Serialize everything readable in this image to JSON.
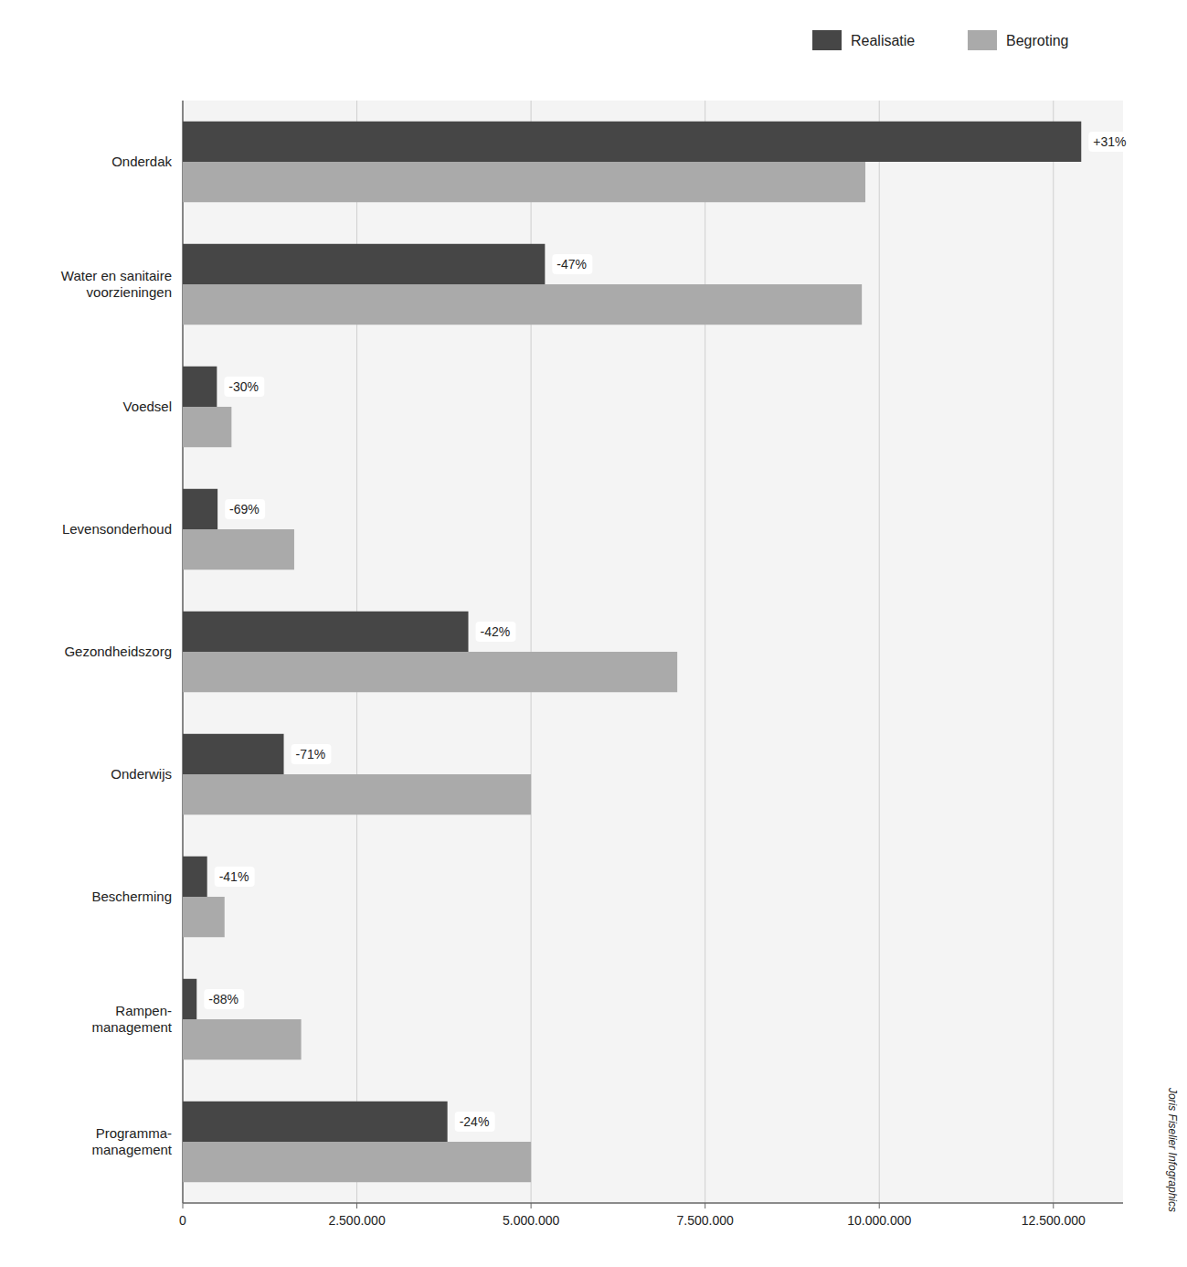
{
  "chart_data": {
    "type": "bar",
    "orientation": "horizontal",
    "categories": [
      "Onderdak",
      "Water en sanitaire\nvoorzieningen",
      "Voedsel",
      "Levensonderhoud",
      "Gezondheidszorg",
      "Onderwijs",
      "Bescherming",
      "Rampen-\nmanagement",
      "Programma-\nmanagement"
    ],
    "series": [
      {
        "name": "Realisatie",
        "color": "#464646",
        "values": [
          12900000,
          5200000,
          490000,
          500000,
          4100000,
          1450000,
          350000,
          200000,
          3800000
        ]
      },
      {
        "name": "Begroting",
        "color": "#AAAAAA",
        "values": [
          9800000,
          9750000,
          700000,
          1600000,
          7100000,
          5000000,
          600000,
          1700000,
          5000000
        ]
      }
    ],
    "annotations": [
      "+31%",
      "-47%",
      "-30%",
      "-69%",
      "-42%",
      "-71%",
      "-41%",
      "-88%",
      "-24%",
      "Joris Fiselier Infographics"
    ],
    "xlim": [
      0,
      13500000
    ],
    "xticks": [
      0,
      {
        "value": 2500000,
        "label": "2.500.000"
      },
      {
        "value": 5000000,
        "label": "5.000.000"
      },
      {
        "value": 7500000,
        "label": "7.500.000"
      },
      {
        "value": 10000000,
        "label": "10.000.000"
      },
      {
        "value": 12500000,
        "label": "12.500.000"
      }
    ],
    "grid": true,
    "legend": "top-right"
  }
}
